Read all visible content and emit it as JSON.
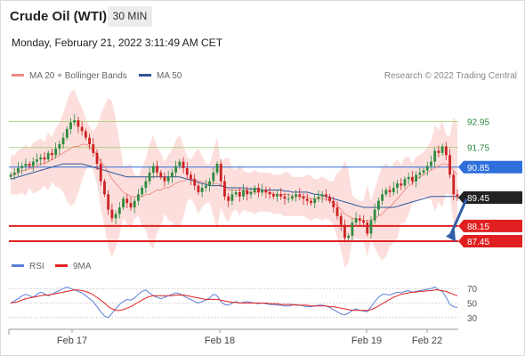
{
  "header": {
    "title": "Crude Oil (WTI)",
    "timeframe": "30 MIN",
    "datetime": "Monday, February 21, 2022 3:11:49 AM CET"
  },
  "legend": {
    "items": [
      {
        "label": "MA 20 + Bollinger Bands",
        "color": "#f08a80"
      },
      {
        "label": "MA 50",
        "color": "#2f5597"
      }
    ],
    "credit": "Research © 2022 Trading Central"
  },
  "rsi_legend": {
    "items": [
      {
        "label": "RSI",
        "color": "#5b7fd6"
      },
      {
        "label": "9MA",
        "color": "#e02020"
      }
    ]
  },
  "colors": {
    "up": "#2e8b3e",
    "down": "#cc2222",
    "resistance": "#9ccc65",
    "support": "#e02020",
    "pivot": "#2f6fdc",
    "band_fill": "#fbd9d7",
    "ma20": "#f08a80",
    "ma50": "#2f5597",
    "rsi": "#5b7fd6",
    "rsi_ma": "#e02020"
  },
  "chart_data": [
    {
      "type": "candlestick",
      "timeframe": "30 MIN",
      "x_tick_labels": [
        "Feb 17",
        "Feb 18",
        "Feb 19",
        "Feb 22"
      ],
      "ylim": [
        87.0,
        93.7
      ],
      "levels": [
        {
          "value": 92.95,
          "label": "92.95",
          "kind": "resistance"
        },
        {
          "value": 91.75,
          "label": "91.75",
          "kind": "resistance"
        },
        {
          "value": 90.85,
          "label": "90.85",
          "kind": "pivot"
        },
        {
          "value": 88.15,
          "label": "88.15",
          "kind": "support"
        },
        {
          "value": 87.45,
          "label": "87.45",
          "kind": "support"
        }
      ],
      "last_price": {
        "value": 89.45,
        "label": "89.45"
      },
      "forecast_arrow": {
        "from": 89.45,
        "to": 87.55,
        "direction": "down"
      },
      "closes": [
        90.5,
        90.6,
        90.8,
        90.9,
        91.0,
        90.9,
        91.1,
        91.2,
        91.3,
        91.2,
        91.5,
        91.4,
        91.7,
        91.9,
        92.2,
        92.6,
        92.9,
        93.0,
        92.7,
        92.5,
        92.2,
        91.9,
        91.5,
        91.0,
        90.2,
        89.6,
        88.9,
        88.5,
        88.7,
        89.0,
        89.4,
        89.2,
        89.0,
        89.3,
        89.6,
        89.9,
        90.2,
        90.6,
        90.9,
        90.6,
        90.4,
        90.2,
        90.4,
        90.6,
        90.9,
        91.1,
        90.8,
        90.5,
        90.3,
        90.0,
        89.7,
        89.9,
        90.0,
        90.2,
        90.6,
        91.0,
        90.2,
        89.5,
        89.3,
        89.6,
        89.7,
        89.5,
        89.8,
        89.6,
        89.7,
        89.9,
        89.7,
        89.8,
        89.7,
        89.6,
        89.5,
        89.6,
        89.5,
        89.4,
        89.4,
        89.5,
        89.6,
        89.5,
        89.4,
        89.3,
        89.2,
        89.4,
        89.5,
        89.6,
        89.5,
        89.3,
        89.0,
        88.6,
        88.2,
        87.6,
        87.7,
        88.3,
        88.5,
        88.4,
        88.3,
        87.8,
        88.4,
        88.9,
        89.3,
        89.6,
        89.8,
        89.7,
        89.9,
        90.1,
        90.0,
        90.3,
        90.4,
        90.2,
        90.5,
        90.6,
        90.7,
        90.9,
        91.1,
        91.6,
        91.5,
        91.8,
        91.4,
        90.5,
        89.6,
        89.5
      ],
      "ma20": [
        90.5,
        90.5,
        90.6,
        90.7,
        90.7,
        90.8,
        90.8,
        90.9,
        91.0,
        91.0,
        91.1,
        91.2,
        91.3,
        91.4,
        91.5,
        91.6,
        91.7,
        91.8,
        91.8,
        91.9,
        91.9,
        91.8,
        91.6,
        91.4,
        91.1,
        90.9,
        90.6,
        90.3,
        90.1,
        89.9,
        89.7,
        89.6,
        89.5,
        89.5,
        89.5,
        89.5,
        89.6,
        89.6,
        89.7,
        89.8,
        89.8,
        89.9,
        89.9,
        90.0,
        90.1,
        90.2,
        90.2,
        90.3,
        90.3,
        90.3,
        90.2,
        90.2,
        90.1,
        90.1,
        90.1,
        90.1,
        90.0,
        89.9,
        89.8,
        89.8,
        89.8,
        89.8,
        89.8,
        89.7,
        89.7,
        89.7,
        89.7,
        89.7,
        89.7,
        89.7,
        89.6,
        89.6,
        89.6,
        89.6,
        89.6,
        89.5,
        89.5,
        89.5,
        89.5,
        89.5,
        89.4,
        89.4,
        89.4,
        89.4,
        89.4,
        89.3,
        89.2,
        89.1,
        88.9,
        88.7,
        88.6,
        88.5,
        88.5,
        88.4,
        88.4,
        88.4,
        88.4,
        88.5,
        88.6,
        88.7,
        88.9,
        89.0,
        89.2,
        89.4,
        89.6,
        89.8,
        90.0,
        90.1,
        90.3,
        90.4,
        90.5,
        90.6,
        90.7,
        90.8,
        90.9,
        91.0,
        91.0,
        90.9,
        90.7,
        90.5
      ],
      "ma50": [
        90.3,
        90.35,
        90.4,
        90.45,
        90.5,
        90.55,
        90.6,
        90.65,
        90.7,
        90.75,
        90.8,
        90.85,
        90.9,
        90.95,
        91.0,
        91.0,
        91.0,
        91.0,
        91.0,
        91.0,
        90.95,
        90.9,
        90.85,
        90.8,
        90.75,
        90.7,
        90.65,
        90.6,
        90.55,
        90.5,
        90.45,
        90.4,
        90.4,
        90.4,
        90.4,
        90.4,
        90.4,
        90.4,
        90.4,
        90.4,
        90.4,
        90.4,
        90.4,
        90.4,
        90.4,
        90.4,
        90.35,
        90.3,
        90.25,
        90.2,
        90.15,
        90.1,
        90.05,
        90.0,
        90.0,
        90.0,
        90.0,
        89.95,
        89.9,
        89.9,
        89.9,
        89.9,
        89.9,
        89.85,
        89.85,
        89.85,
        89.85,
        89.8,
        89.8,
        89.8,
        89.8,
        89.8,
        89.8,
        89.75,
        89.75,
        89.7,
        89.7,
        89.7,
        89.7,
        89.7,
        89.65,
        89.6,
        89.6,
        89.55,
        89.5,
        89.45,
        89.4,
        89.35,
        89.3,
        89.25,
        89.2,
        89.15,
        89.1,
        89.05,
        89.0,
        89.0,
        89.0,
        89.0,
        89.0,
        89.0,
        89.0,
        89.0,
        89.0,
        89.05,
        89.1,
        89.15,
        89.2,
        89.25,
        89.3,
        89.35,
        89.4,
        89.45,
        89.5,
        89.5,
        89.5,
        89.5,
        89.5,
        89.5,
        89.5,
        89.5
      ]
    },
    {
      "type": "line",
      "name": "RSI",
      "ylim": [
        20,
        80
      ],
      "y_tick_labels": [
        "70",
        "50",
        "30"
      ],
      "y_ticks": [
        70,
        50,
        30
      ],
      "rsi": [
        50,
        53,
        56,
        60,
        62,
        60,
        58,
        62,
        65,
        63,
        60,
        62,
        65,
        67,
        70,
        72,
        70,
        68,
        66,
        64,
        60,
        56,
        52,
        45,
        38,
        32,
        30,
        36,
        42,
        48,
        52,
        55,
        54,
        57,
        62,
        66,
        68,
        64,
        60,
        58,
        56,
        58,
        60,
        62,
        64,
        63,
        60,
        57,
        55,
        52,
        50,
        52,
        54,
        57,
        62,
        60,
        52,
        48,
        47,
        50,
        52,
        50,
        51,
        52,
        51,
        50,
        49,
        50,
        49,
        48,
        48,
        47,
        47,
        46,
        46,
        47,
        48,
        47,
        46,
        45,
        45,
        46,
        47,
        47,
        46,
        44,
        41,
        38,
        35,
        34,
        36,
        40,
        42,
        40,
        39,
        38,
        45,
        52,
        58,
        62,
        62,
        61,
        63,
        65,
        64,
        66,
        67,
        65,
        66,
        67,
        68,
        69,
        70,
        72,
        68,
        66,
        58,
        48,
        45,
        44
      ],
      "rsi_ma": [
        50,
        51,
        52,
        54,
        56,
        57,
        58,
        59,
        60,
        61,
        61,
        62,
        63,
        64,
        65,
        66,
        67,
        68,
        68,
        67,
        66,
        64,
        61,
        58,
        54,
        50,
        45,
        42,
        40,
        40,
        41,
        43,
        45,
        48,
        51,
        54,
        57,
        59,
        60,
        60,
        60,
        60,
        60,
        60,
        61,
        61,
        61,
        60,
        59,
        58,
        57,
        56,
        55,
        55,
        55,
        55,
        54,
        53,
        52,
        51,
        51,
        50,
        50,
        50,
        50,
        50,
        50,
        50,
        50,
        49,
        49,
        49,
        48,
        48,
        48,
        48,
        47,
        47,
        47,
        47,
        46,
        46,
        46,
        46,
        46,
        45,
        45,
        44,
        43,
        42,
        41,
        40,
        40,
        40,
        40,
        40,
        41,
        43,
        46,
        49,
        52,
        55,
        58,
        60,
        62,
        63,
        64,
        65,
        65,
        66,
        66,
        67,
        67,
        68,
        68,
        67,
        66,
        64,
        62,
        60
      ]
    }
  ]
}
